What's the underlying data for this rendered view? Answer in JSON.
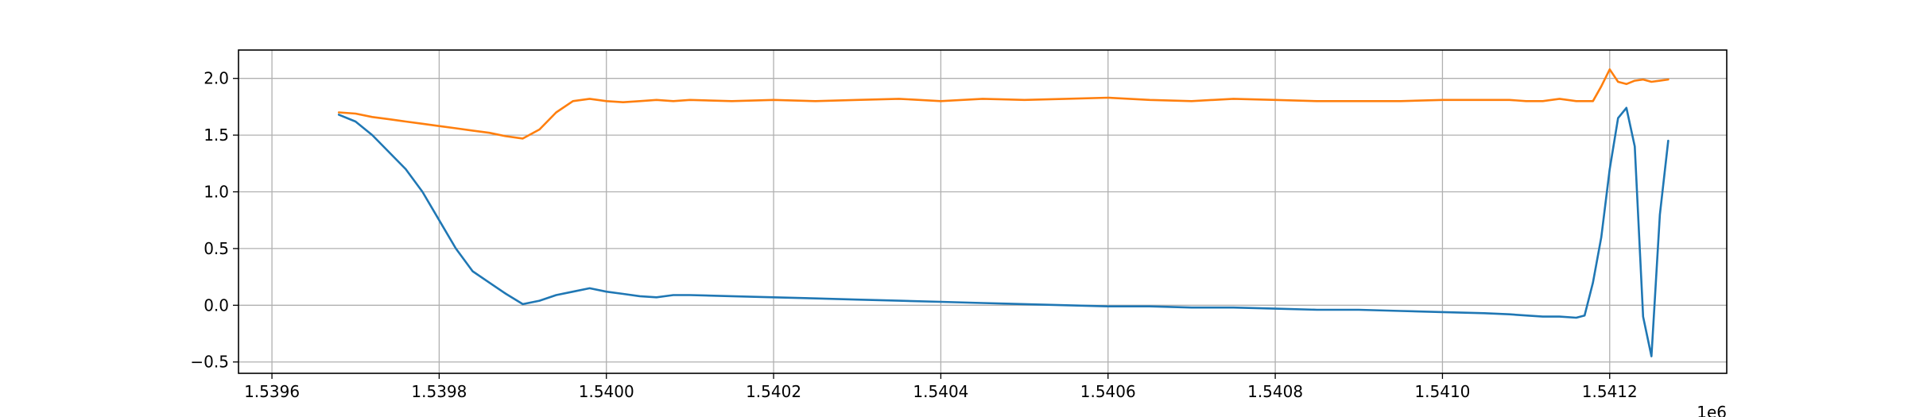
{
  "chart_data": {
    "type": "line",
    "title": "",
    "xlabel": "",
    "ylabel": "",
    "x_offset_label": "1e6",
    "xlim": [
      1.53956,
      1.54134
    ],
    "ylim": [
      -0.6,
      2.25
    ],
    "grid": true,
    "x_ticks": [
      1.5396,
      1.5398,
      1.54,
      1.5402,
      1.5404,
      1.5406,
      1.5408,
      1.541,
      1.5412
    ],
    "x_tick_labels": [
      "1.5396",
      "1.5398",
      "1.5400",
      "1.5402",
      "1.5404",
      "1.5406",
      "1.5408",
      "1.5410",
      "1.5412"
    ],
    "y_ticks": [
      -0.5,
      0.0,
      0.5,
      1.0,
      1.5,
      2.0
    ],
    "y_tick_labels": [
      "−0.5",
      "0.0",
      "0.5",
      "1.0",
      "1.5",
      "2.0"
    ],
    "series": [
      {
        "color": "#1f77b4",
        "x": [
          1.53968,
          1.5397,
          1.53972,
          1.53974,
          1.53976,
          1.53978,
          1.5398,
          1.53982,
          1.53984,
          1.53986,
          1.53988,
          1.5399,
          1.53992,
          1.53994,
          1.53996,
          1.53998,
          1.54,
          1.54002,
          1.54004,
          1.54006,
          1.54008,
          1.5401,
          1.54015,
          1.5402,
          1.54025,
          1.5403,
          1.54035,
          1.5404,
          1.54045,
          1.5405,
          1.54055,
          1.5406,
          1.54065,
          1.5407,
          1.54075,
          1.5408,
          1.54085,
          1.5409,
          1.54095,
          1.541,
          1.54105,
          1.54108,
          1.5411,
          1.54112,
          1.54114,
          1.54116,
          1.54117,
          1.54118,
          1.54119,
          1.5412,
          1.54121,
          1.54122,
          1.54123,
          1.54124,
          1.54125,
          1.54126,
          1.54127
        ],
        "y": [
          1.68,
          1.62,
          1.5,
          1.35,
          1.2,
          1.0,
          0.75,
          0.5,
          0.3,
          0.2,
          0.1,
          0.01,
          0.04,
          0.09,
          0.12,
          0.15,
          0.12,
          0.1,
          0.08,
          0.07,
          0.09,
          0.09,
          0.08,
          0.07,
          0.06,
          0.05,
          0.04,
          0.03,
          0.02,
          0.01,
          0.0,
          -0.01,
          -0.01,
          -0.02,
          -0.02,
          -0.03,
          -0.04,
          -0.04,
          -0.05,
          -0.06,
          -0.07,
          -0.08,
          -0.09,
          -0.1,
          -0.1,
          -0.11,
          -0.09,
          0.2,
          0.6,
          1.2,
          1.65,
          1.74,
          1.4,
          -0.1,
          -0.45,
          0.8,
          1.45
        ]
      },
      {
        "color": "#ff7f0e",
        "x": [
          1.53968,
          1.5397,
          1.53972,
          1.53974,
          1.53976,
          1.53978,
          1.5398,
          1.53982,
          1.53984,
          1.53986,
          1.53988,
          1.5399,
          1.53992,
          1.53994,
          1.53996,
          1.53998,
          1.54,
          1.54002,
          1.54004,
          1.54006,
          1.54008,
          1.5401,
          1.54015,
          1.5402,
          1.54025,
          1.5403,
          1.54035,
          1.5404,
          1.54045,
          1.5405,
          1.54055,
          1.5406,
          1.54065,
          1.5407,
          1.54075,
          1.5408,
          1.54085,
          1.5409,
          1.54095,
          1.541,
          1.54105,
          1.54108,
          1.5411,
          1.54112,
          1.54114,
          1.54116,
          1.54117,
          1.54118,
          1.54119,
          1.5412,
          1.54121,
          1.54122,
          1.54123,
          1.54124,
          1.54125,
          1.54126,
          1.54127
        ],
        "y": [
          1.7,
          1.69,
          1.66,
          1.64,
          1.62,
          1.6,
          1.58,
          1.56,
          1.54,
          1.52,
          1.49,
          1.47,
          1.55,
          1.7,
          1.8,
          1.82,
          1.8,
          1.79,
          1.8,
          1.81,
          1.8,
          1.81,
          1.8,
          1.81,
          1.8,
          1.81,
          1.82,
          1.8,
          1.82,
          1.81,
          1.82,
          1.83,
          1.81,
          1.8,
          1.82,
          1.81,
          1.8,
          1.8,
          1.8,
          1.81,
          1.81,
          1.81,
          1.8,
          1.8,
          1.82,
          1.8,
          1.8,
          1.8,
          1.93,
          2.08,
          1.97,
          1.95,
          1.98,
          1.99,
          1.97,
          1.98,
          1.99
        ]
      }
    ]
  }
}
